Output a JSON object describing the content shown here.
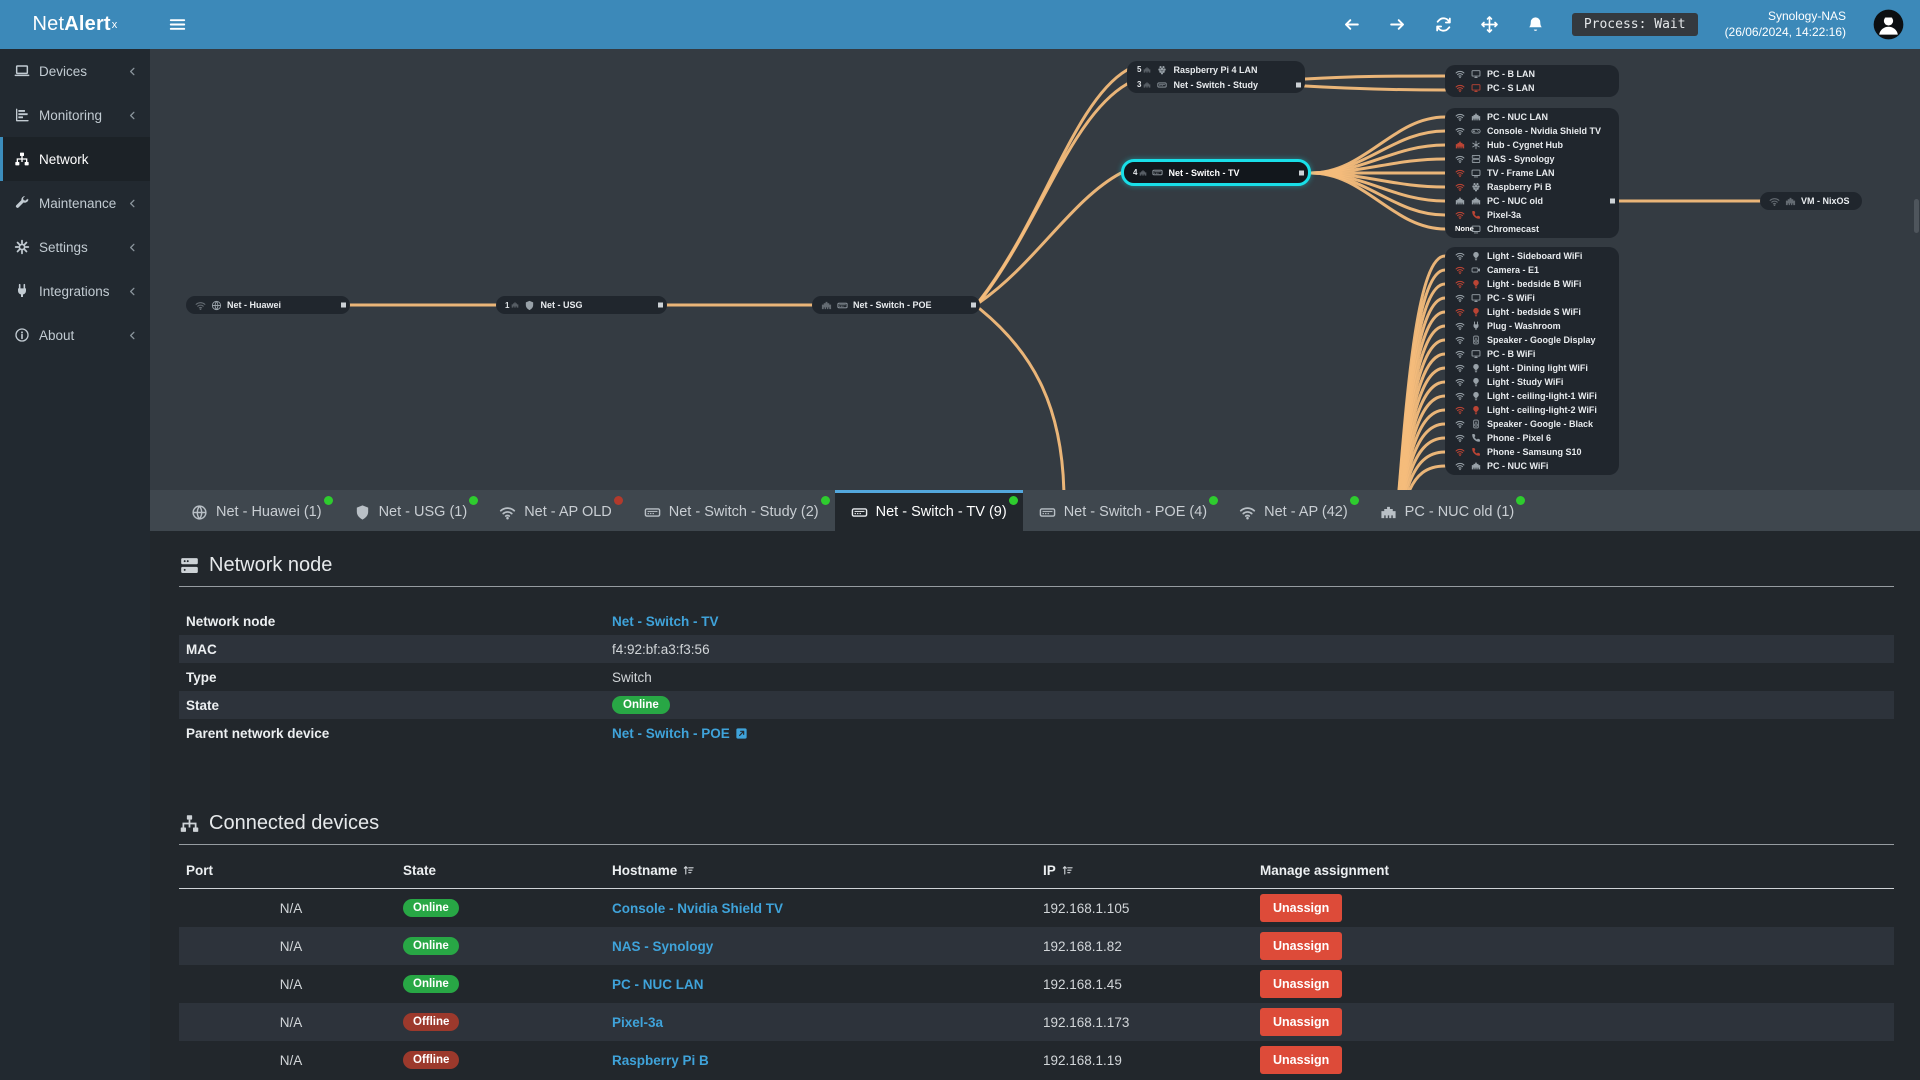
{
  "app": {
    "name_light": "Net",
    "name_bold": "Alert",
    "name_sup": "x"
  },
  "navbar": {
    "icons": [
      "arrow-left",
      "arrow-right",
      "refresh",
      "move",
      "bell"
    ],
    "process": "Process: Wait",
    "host": "Synology-NAS",
    "timestamp": "(26/06/2024, 14:22:16)"
  },
  "sidebar": {
    "items": [
      {
        "icon": "laptop",
        "label": "Devices",
        "chevron": "yes"
      },
      {
        "icon": "chart",
        "label": "Monitoring",
        "chevron": "yes"
      },
      {
        "icon": "sitemap",
        "label": "Network",
        "state": "active"
      },
      {
        "icon": "wrench",
        "label": "Maintenance",
        "chevron": "yes"
      },
      {
        "icon": "gear",
        "label": "Settings",
        "chevron": "yes"
      },
      {
        "icon": "plug",
        "label": "Integrations",
        "chevron": "yes"
      },
      {
        "icon": "info",
        "label": "About",
        "chevron": "yes"
      }
    ]
  },
  "topology": {
    "chain": [
      {
        "id": "huawei",
        "conn": "wifi",
        "icon": "globe",
        "label": "Net - Huawei",
        "connector": "yes"
      },
      {
        "id": "usg",
        "port": "1",
        "icon": "shield",
        "label": "Net - USG",
        "connector": "yes"
      },
      {
        "id": "poe",
        "conn": "eth",
        "icon": "switch",
        "label": "Net - Switch - POE",
        "connector": "yes"
      }
    ],
    "top_node": {
      "rows": [
        {
          "port": "5",
          "icon": "raspberry",
          "label": "Raspberry Pi 4 LAN"
        },
        {
          "port": "3",
          "icon": "switch",
          "label": "Net - Switch - Study",
          "connector": "yes"
        }
      ]
    },
    "selected": {
      "port": "4",
      "icon": "switch",
      "label": "Net - Switch - TV"
    },
    "vm": {
      "conn": "wifi",
      "icon": "eth",
      "label": "VM - NixOS"
    },
    "groups": [
      {
        "rows": [
          {
            "conn": "wifi",
            "icon": "monitor",
            "label": "PC - B LAN"
          },
          {
            "conn": "wifi",
            "conn_color": "red",
            "icon": "monitor",
            "icon_color": "red",
            "label": "PC - S LAN"
          }
        ]
      },
      {
        "rows": [
          {
            "conn": "wifi",
            "icon": "eth",
            "label": "PC - NUC LAN"
          },
          {
            "conn": "wifi",
            "icon": "gamepad",
            "label": "Console - Nvidia Shield TV"
          },
          {
            "conn": "eth",
            "conn_color": "red",
            "icon": "hub",
            "label": "Hub - Cygnet Hub"
          },
          {
            "conn": "wifi",
            "icon": "server",
            "label": "NAS - Synology"
          },
          {
            "conn": "wifi",
            "conn_color": "red",
            "icon": "tv",
            "label": "TV - Frame LAN"
          },
          {
            "conn": "wifi",
            "conn_color": "red",
            "icon": "raspberry",
            "label": "Raspberry Pi B"
          },
          {
            "conn": "eth",
            "icon": "eth",
            "label": "PC - NUC old",
            "connector": "yes"
          },
          {
            "conn": "wifi",
            "conn_color": "red",
            "icon": "phone",
            "icon_color": "red",
            "label": "Pixel-3a"
          },
          {
            "conn": "none",
            "icon": "tv",
            "label": "Chromecast"
          }
        ]
      },
      {
        "rows": [
          {
            "conn": "wifi",
            "icon": "bulb",
            "label": "Light - Sideboard WiFi"
          },
          {
            "conn": "wifi",
            "conn_color": "red",
            "icon": "camera",
            "label": "Camera - E1"
          },
          {
            "conn": "wifi",
            "conn_color": "red",
            "icon": "bulb",
            "icon_color": "red",
            "label": "Light - bedside B WiFi"
          },
          {
            "conn": "wifi",
            "icon": "monitor",
            "label": "PC - S WiFi"
          },
          {
            "conn": "wifi",
            "conn_color": "red",
            "icon": "bulb",
            "icon_color": "red",
            "label": "Light - bedside S WiFi"
          },
          {
            "conn": "wifi",
            "icon": "plug",
            "label": "Plug - Washroom"
          },
          {
            "conn": "wifi",
            "icon": "speaker",
            "label": "Speaker - Google Display"
          },
          {
            "conn": "wifi",
            "icon": "monitor",
            "label": "PC - B WiFi"
          },
          {
            "conn": "wifi",
            "icon": "bulb",
            "label": "Light - Dining light WiFi"
          },
          {
            "conn": "wifi",
            "icon": "bulb",
            "label": "Light - Study WiFi"
          },
          {
            "conn": "wifi",
            "icon": "bulb",
            "label": "Light - ceiling-light-1 WiFi"
          },
          {
            "conn": "wifi",
            "conn_color": "red",
            "icon": "bulb",
            "icon_color": "red",
            "label": "Light - ceiling-light-2 WiFi"
          },
          {
            "conn": "wifi",
            "icon": "speaker",
            "label": "Speaker - Google - Black"
          },
          {
            "conn": "wifi",
            "icon": "phone",
            "label": "Phone - Pixel 6"
          },
          {
            "conn": "wifi",
            "conn_color": "red",
            "icon": "phone",
            "icon_color": "red",
            "label": "Phone - Samsung S10"
          },
          {
            "conn": "wifi",
            "icon": "eth",
            "label": "PC - NUC WiFi"
          }
        ]
      }
    ]
  },
  "tabs": [
    {
      "icon": "globe",
      "label": "Net - Huawei (1)",
      "dot": "green"
    },
    {
      "icon": "shield",
      "label": "Net - USG (1)",
      "dot": "green"
    },
    {
      "icon": "wifi",
      "label": "Net - AP OLD",
      "dot": "red"
    },
    {
      "icon": "switch",
      "label": "Net - Switch - Study (2)",
      "dot": "green"
    },
    {
      "icon": "switch",
      "label": "Net - Switch - TV (9)",
      "dot": "green",
      "state": "active"
    },
    {
      "icon": "switch",
      "label": "Net - Switch - POE (4)",
      "dot": "green"
    },
    {
      "icon": "wifi",
      "label": "Net - AP (42)",
      "dot": "green"
    },
    {
      "icon": "eth",
      "label": "PC - NUC old (1)",
      "dot": "green"
    }
  ],
  "network_node": {
    "icon": "server2",
    "title": "Network node",
    "rows": [
      {
        "label": "Network node",
        "type": "link",
        "value": "Net - Switch - TV"
      },
      {
        "label": "MAC",
        "type": "text",
        "value": "f4:92:bf:a3:f3:56"
      },
      {
        "label": "Type",
        "type": "text",
        "value": "Switch"
      },
      {
        "label": "State",
        "type": "badge",
        "value": "Online"
      },
      {
        "label": "Parent network device",
        "type": "linkext",
        "value": "Net - Switch - POE"
      }
    ]
  },
  "connected_devices": {
    "icon": "sitemap",
    "title": "Connected devices",
    "columns": {
      "port": "Port",
      "state": "State",
      "hostname": "Hostname",
      "ip": "IP",
      "manage": "Manage assignment"
    },
    "rows": [
      {
        "port": "N/A",
        "state": "Online",
        "state_color": "green",
        "hostname": "Console - Nvidia Shield TV",
        "ip": "192.168.1.105",
        "action": "Unassign"
      },
      {
        "port": "N/A",
        "state": "Online",
        "state_color": "green",
        "hostname": "NAS - Synology",
        "ip": "192.168.1.82",
        "action": "Unassign"
      },
      {
        "port": "N/A",
        "state": "Online",
        "state_color": "green",
        "hostname": "PC - NUC LAN",
        "ip": "192.168.1.45",
        "action": "Unassign"
      },
      {
        "port": "N/A",
        "state": "Offline",
        "state_color": "red",
        "hostname": "Pixel-3a",
        "ip": "192.168.1.173",
        "action": "Unassign"
      },
      {
        "port": "N/A",
        "state": "Offline",
        "state_color": "red",
        "hostname": "Raspberry Pi B",
        "ip": "192.168.1.19",
        "action": "Unassign"
      }
    ]
  },
  "colors": {
    "accent_blue": "#3c8dbc",
    "link_blue": "#3fa3da",
    "edge_orange": "#f4bc7b",
    "selection_cyan": "#19dfe8",
    "online_green": "#28a745",
    "offline_red": "#9c392c",
    "danger_red": "#dd4b39",
    "dot_green": "#2ecc2e",
    "dot_red": "#b23a2c"
  }
}
